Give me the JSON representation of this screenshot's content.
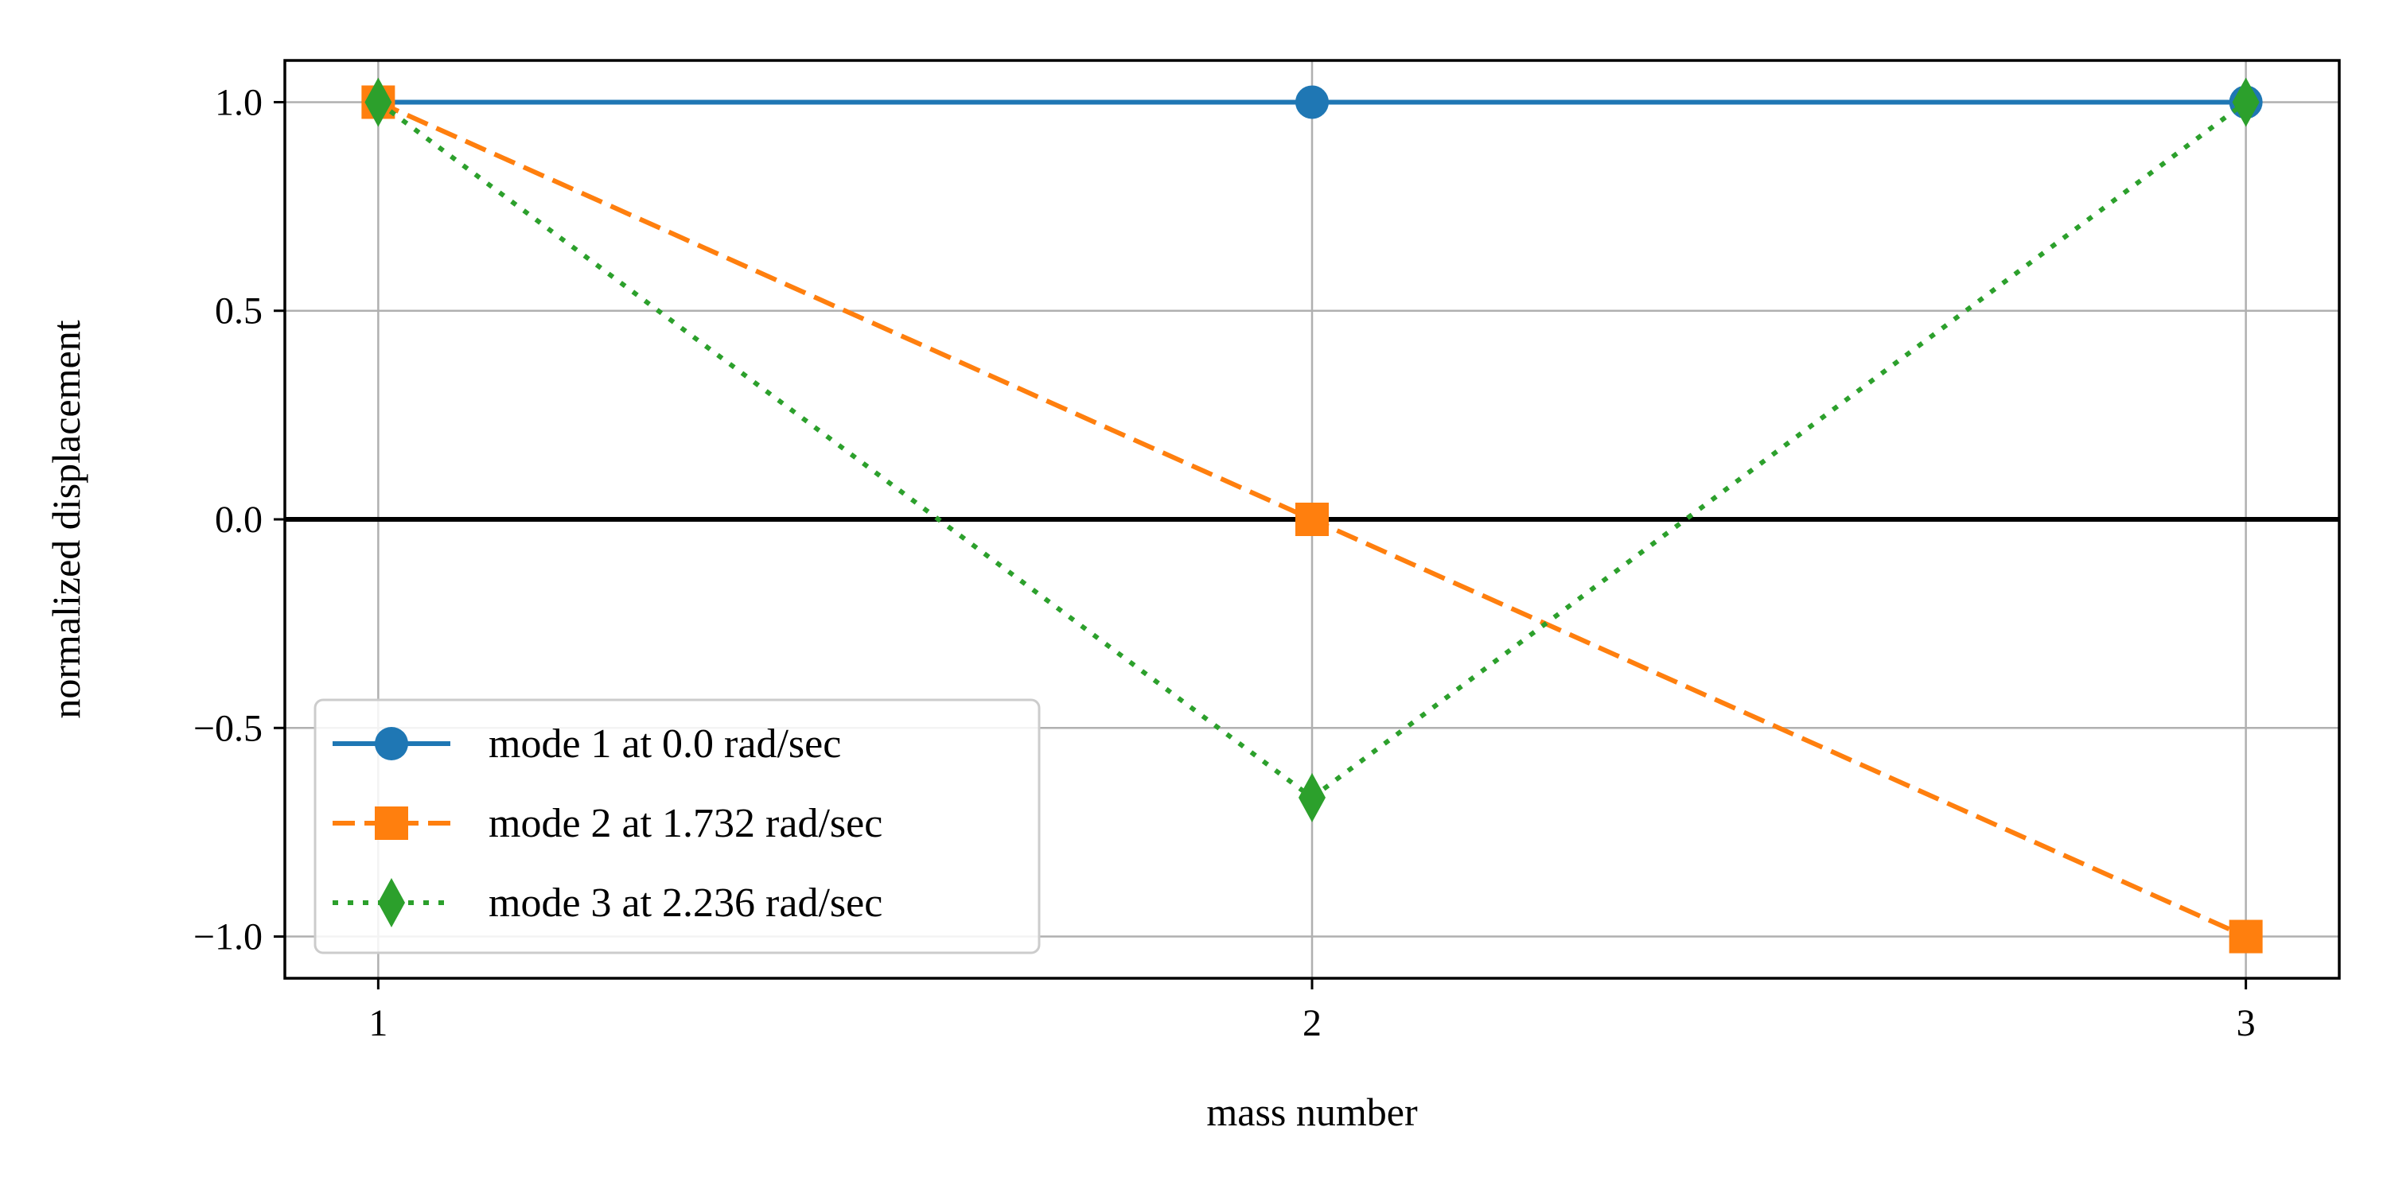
{
  "chart_data": {
    "type": "line",
    "title": "",
    "xlabel": "mass number",
    "ylabel": "normalized displacement",
    "xlim": [
      0.9,
      3.1
    ],
    "ylim": [
      -1.1,
      1.1
    ],
    "xticks": [
      1,
      2,
      3
    ],
    "xtick_labels": [
      "1",
      "2",
      "3"
    ],
    "yticks": [
      -1.0,
      -0.5,
      0.0,
      0.5,
      1.0
    ],
    "ytick_labels": [
      "−1.0",
      "−0.5",
      "0.0",
      "0.5",
      "1.0"
    ],
    "grid": true,
    "zero_line": true,
    "legend_position": "lower-left",
    "x": [
      1,
      2,
      3
    ],
    "series": [
      {
        "name": "mode 1 at 0.0 rad/sec",
        "values": [
          1.0,
          1.0,
          1.0
        ],
        "color": "#1f77b4",
        "linestyle": "solid",
        "marker": "circle"
      },
      {
        "name": "mode 2 at 1.732 rad/sec",
        "values": [
          1.0,
          0.0,
          -1.0
        ],
        "color": "#ff7f0e",
        "linestyle": "dashed",
        "marker": "square"
      },
      {
        "name": "mode 3 at 2.236 rad/sec",
        "values": [
          1.0,
          -0.667,
          1.0
        ],
        "color": "#2ca02c",
        "linestyle": "dotted",
        "marker": "diamond"
      }
    ]
  }
}
